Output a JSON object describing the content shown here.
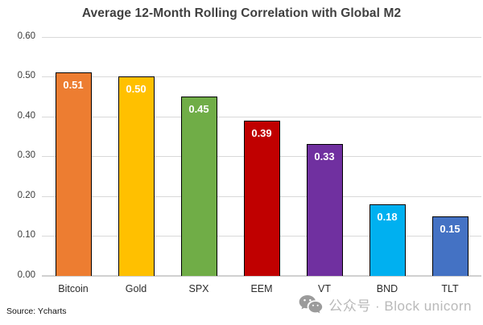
{
  "title": "Average 12-Month Rolling Correlation with Global M2",
  "source_note": "Source: Ycharts",
  "watermark": {
    "icon": "wechat-icon",
    "text": "公众号 · Block unicorn",
    "text_color": "#b9b9b9",
    "icon_color": "#9b9b9b"
  },
  "colors": {
    "title_text": "#3f3f3f",
    "gridline": "#d9d9d9",
    "axis_line": "#d0d0d0",
    "bar_border": "#000000",
    "bar_value_text": "#ffffff"
  },
  "chart_data": {
    "type": "bar",
    "title": "Average 12-Month Rolling Correlation with Global M2",
    "categories": [
      "Bitcoin",
      "Gold",
      "SPX",
      "EEM",
      "VT",
      "BND",
      "TLT"
    ],
    "values": [
      0.51,
      0.5,
      0.45,
      0.39,
      0.33,
      0.18,
      0.15
    ],
    "data_labels": [
      "0.51",
      "0.50",
      "0.45",
      "0.39",
      "0.33",
      "0.18",
      "0.15"
    ],
    "bar_colors": [
      "#ED7D31",
      "#FFC000",
      "#70AD47",
      "#C00000",
      "#7030A0",
      "#00B0F0",
      "#4472C4"
    ],
    "xlabel": "",
    "ylabel": "",
    "ylim": [
      0.0,
      0.6
    ],
    "ytick_values": [
      0.0,
      0.1,
      0.2,
      0.3,
      0.4,
      0.5,
      0.6
    ],
    "ytick_labels": [
      "0.00",
      "0.10",
      "0.20",
      "0.30",
      "0.40",
      "0.50",
      "0.60"
    ],
    "grid": true,
    "legend": false,
    "data_labels_position": "inside-top",
    "source": "Source: Ycharts"
  }
}
